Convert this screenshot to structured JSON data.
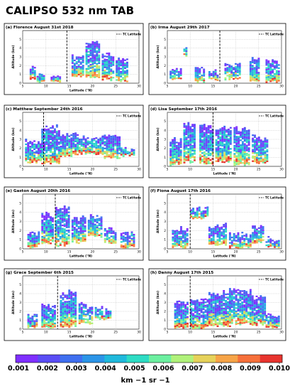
{
  "figure": {
    "title": "CALIPSO 532 nm TAB",
    "colorbar": {
      "ticks": [
        "0.001",
        "0.002",
        "0.003",
        "0.004",
        "0.005",
        "0.006",
        "0.007",
        "0.008",
        "0.009",
        "0.010"
      ],
      "unit": "km −1 sr −1",
      "colors": [
        "#7f2fff",
        "#5a4df5",
        "#3f6ff0",
        "#2b95e8",
        "#1fb9dc",
        "#2ddcc4",
        "#6cf0a0",
        "#b0f27a",
        "#e6d25a",
        "#f7a447",
        "#f7703a",
        "#e8342e"
      ]
    }
  },
  "chart_data": [
    {
      "type": "heatmap",
      "panel": "(a)",
      "title": "Florence August 31st 2018",
      "xlabel": "Latitude (°N)",
      "ylabel": "Altitude (km)",
      "xlim": [
        5,
        30
      ],
      "ylim": [
        0,
        6
      ],
      "xticks": [
        5,
        10,
        15,
        20,
        25,
        30
      ],
      "yticks": [
        1,
        2,
        3,
        4,
        5
      ],
      "legend": "TC Latitude",
      "tc_latitude": 14.5,
      "cloud_columns": [
        {
          "lat": [
            6.5,
            7.5
          ],
          "top": 2.0,
          "base": 0.3
        },
        {
          "lat": [
            8,
            9.5
          ],
          "top": 1.2,
          "base": 0.0
        },
        {
          "lat": [
            11,
            13
          ],
          "top": 1.0,
          "base": 0.0
        },
        {
          "lat": [
            15.5,
            18
          ],
          "top": 3.2,
          "base": 0.6
        },
        {
          "lat": [
            18.5,
            21.5
          ],
          "top": 4.9,
          "base": 0.5
        },
        {
          "lat": [
            22,
            24.5
          ],
          "top": 3.5,
          "base": 0.2
        },
        {
          "lat": [
            25,
            27.5
          ],
          "top": 3.0,
          "base": 0.0
        }
      ]
    },
    {
      "type": "heatmap",
      "panel": "(b)",
      "title": "Irma August 29th 2017",
      "xlabel": "",
      "ylabel": "Altitude (km)",
      "xlim": [
        5,
        30
      ],
      "ylim": [
        0,
        6
      ],
      "xticks": [
        5,
        10,
        15,
        20,
        25,
        30
      ],
      "yticks": [
        1,
        2,
        3,
        4,
        5
      ],
      "legend": "TC Latitude",
      "tc_latitude": 16.5,
      "cloud_columns": [
        {
          "lat": [
            5.5,
            8
          ],
          "top": 1.8,
          "base": 0.2
        },
        {
          "lat": [
            8.5,
            9
          ],
          "top": 4.5,
          "base": 3.0
        },
        {
          "lat": [
            11,
            13
          ],
          "top": 2.0,
          "base": 0.0
        },
        {
          "lat": [
            14,
            16
          ],
          "top": 1.6,
          "base": 0.2
        },
        {
          "lat": [
            17.5,
            21
          ],
          "top": 2.2,
          "base": 0.3
        },
        {
          "lat": [
            23,
            25
          ],
          "top": 3.0,
          "base": 0.0
        },
        {
          "lat": [
            26.5,
            29.5
          ],
          "top": 2.7,
          "base": 0.0
        }
      ]
    },
    {
      "type": "heatmap",
      "panel": "(c)",
      "title": "Matthew September 24th 2016",
      "xlabel": "Latitude (°N)",
      "ylabel": "Altitude (km)",
      "xlim": [
        5,
        30
      ],
      "ylim": [
        0,
        6
      ],
      "xticks": [
        5,
        10,
        15,
        20,
        25,
        30
      ],
      "yticks": [
        1,
        2,
        3,
        4,
        5
      ],
      "legend": "TC Latitude",
      "tc_latitude": 9.5,
      "cloud_columns": [
        {
          "lat": [
            5.5,
            9
          ],
          "top": 3.0,
          "base": 0.3
        },
        {
          "lat": [
            9,
            13
          ],
          "top": 4.6,
          "base": 0.2
        },
        {
          "lat": [
            13,
            17
          ],
          "top": 3.8,
          "base": 1.0
        },
        {
          "lat": [
            17,
            22
          ],
          "top": 3.4,
          "base": 1.2
        },
        {
          "lat": [
            22,
            26
          ],
          "top": 3.8,
          "base": 0.8
        },
        {
          "lat": [
            26,
            29
          ],
          "top": 2.2,
          "base": 1.0
        }
      ]
    },
    {
      "type": "heatmap",
      "panel": "(d)",
      "title": "Lisa September 17th 2016",
      "xlabel": "Latitude (°N)",
      "ylabel": "Altitude (km)",
      "xlim": [
        5,
        30
      ],
      "ylim": [
        0,
        6
      ],
      "xticks": [
        5,
        10,
        15,
        20,
        25,
        30
      ],
      "yticks": [
        1,
        2,
        3,
        4,
        5
      ],
      "legend": "TC Latitude",
      "tc_latitude": 15,
      "cloud_columns": [
        {
          "lat": [
            5.5,
            8
          ],
          "top": 3.2,
          "base": 0.0
        },
        {
          "lat": [
            8.5,
            11
          ],
          "top": 4.8,
          "base": 0.3
        },
        {
          "lat": [
            12,
            15
          ],
          "top": 4.6,
          "base": 0.2
        },
        {
          "lat": [
            15.5,
            19
          ],
          "top": 4.5,
          "base": 0.3
        },
        {
          "lat": [
            19.5,
            23
          ],
          "top": 4.4,
          "base": 0.0
        },
        {
          "lat": [
            23.5,
            27
          ],
          "top": 3.4,
          "base": 0.2
        }
      ]
    },
    {
      "type": "heatmap",
      "panel": "(e)",
      "title": "Gaston August 20th 2016",
      "xlabel": "Latitude (°N)",
      "ylabel": "Altitude (km)",
      "xlim": [
        5,
        30
      ],
      "ylim": [
        0,
        6
      ],
      "xticks": [
        5,
        10,
        15,
        20,
        25,
        30
      ],
      "yticks": [
        1,
        2,
        3,
        4,
        5
      ],
      "legend": "TC Latitude",
      "tc_latitude": 12,
      "cloud_columns": [
        {
          "lat": [
            6,
            8.5
          ],
          "top": 2.0,
          "base": 0.0
        },
        {
          "lat": [
            9,
            11.5
          ],
          "top": 4.0,
          "base": 0.5
        },
        {
          "lat": [
            12,
            15
          ],
          "top": 4.8,
          "base": 0.2
        },
        {
          "lat": [
            15.5,
            18.5
          ],
          "top": 3.6,
          "base": 0.5
        },
        {
          "lat": [
            19,
            22
          ],
          "top": 3.8,
          "base": 1.2
        },
        {
          "lat": [
            22.5,
            25
          ],
          "top": 2.4,
          "base": 0.5
        },
        {
          "lat": [
            26,
            29
          ],
          "top": 2.0,
          "base": 0.0
        }
      ]
    },
    {
      "type": "heatmap",
      "panel": "(f)",
      "title": "Fiona August 17th 2016",
      "xlabel": "Latitude (°N)",
      "ylabel": "Altitude (km)",
      "xlim": [
        5,
        30
      ],
      "ylim": [
        0,
        6
      ],
      "xticks": [
        5,
        10,
        15,
        20,
        25,
        30
      ],
      "yticks": [
        1,
        2,
        3,
        4,
        5
      ],
      "legend": "TC Latitude",
      "tc_latitude": 10,
      "cloud_columns": [
        {
          "lat": [
            6,
            9.5
          ],
          "top": 2.4,
          "base": 0.0
        },
        {
          "lat": [
            10,
            14
          ],
          "top": 4.6,
          "base": 3.2
        },
        {
          "lat": [
            14,
            18
          ],
          "top": 2.8,
          "base": 0.3
        },
        {
          "lat": [
            18.5,
            23
          ],
          "top": 1.8,
          "base": 0.0
        },
        {
          "lat": [
            23.5,
            26
          ],
          "top": 2.6,
          "base": 0.5
        },
        {
          "lat": [
            26.5,
            29.5
          ],
          "top": 1.3,
          "base": 0.0
        }
      ]
    },
    {
      "type": "heatmap",
      "panel": "(g)",
      "title": "Grace September 6th 2015",
      "xlabel": "Latitude (°N)",
      "ylabel": "Altitude (km)",
      "xlim": [
        5,
        30
      ],
      "ylim": [
        0,
        6
      ],
      "xticks": [
        5,
        10,
        15,
        20,
        25,
        30
      ],
      "yticks": [
        1,
        2,
        3,
        4,
        5
      ],
      "legend": "TC Latitude",
      "tc_latitude": 12.5,
      "cloud_columns": [
        {
          "lat": [
            6,
            8
          ],
          "top": 1.8,
          "base": 0.0
        },
        {
          "lat": [
            9,
            12
          ],
          "top": 2.8,
          "base": 0.0
        },
        {
          "lat": [
            13,
            16.5
          ],
          "top": 4.3,
          "base": 0.0
        },
        {
          "lat": [
            17,
            20
          ],
          "top": 3.0,
          "base": 0.5
        },
        {
          "lat": [
            20.5,
            24
          ],
          "top": 2.5,
          "base": 1.0
        }
      ]
    },
    {
      "type": "heatmap",
      "panel": "(h)",
      "title": "Danny August 17th 2015",
      "xlabel": "Latitude (°N)",
      "ylabel": "Altitude (km)",
      "xlim": [
        5,
        30
      ],
      "ylim": [
        0,
        6
      ],
      "xticks": [
        5,
        10,
        15,
        20,
        25,
        30
      ],
      "yticks": [
        1,
        2,
        3,
        4,
        5
      ],
      "legend": "TC Latitude",
      "tc_latitude": 10,
      "cloud_columns": [
        {
          "lat": [
            6.5,
            9.5
          ],
          "top": 3.4,
          "base": 0.0
        },
        {
          "lat": [
            10,
            14
          ],
          "top": 3.6,
          "base": 0.0
        },
        {
          "lat": [
            14,
            18.5
          ],
          "top": 4.3,
          "base": 0.2
        },
        {
          "lat": [
            18.5,
            23
          ],
          "top": 4.6,
          "base": 0.4
        },
        {
          "lat": [
            23,
            26.5
          ],
          "top": 3.8,
          "base": 0.3
        },
        {
          "lat": [
            26.5,
            29.5
          ],
          "top": 1.8,
          "base": 0.0
        }
      ]
    }
  ]
}
